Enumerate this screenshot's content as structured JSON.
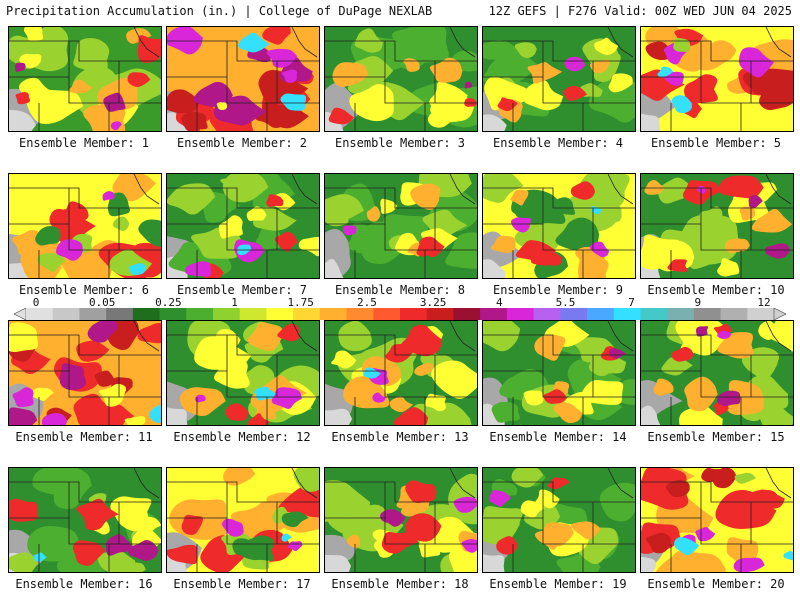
{
  "header": {
    "title_left": "Precipitation Accumulation (in.) | College of DuPage NEXLAB",
    "title_right": "12Z GEFS | F276 Valid: 00Z WED JUN 04 2025"
  },
  "colorbar": {
    "labels": [
      "0",
      "0.05",
      "0.25",
      "1",
      "1.75",
      "2.5",
      "3.25",
      "4",
      "5.5",
      "7",
      "9",
      "12"
    ],
    "colors": [
      "#e0e0e0",
      "#c8c8c8",
      "#a0a0a0",
      "#787878",
      "#1e6e1e",
      "#2f8f2f",
      "#4caf2f",
      "#8fd12f",
      "#cde82f",
      "#ffff33",
      "#ffd633",
      "#ffb02f",
      "#ff8a2f",
      "#ff5a2f",
      "#ee2a2a",
      "#c81e1e",
      "#9a1030",
      "#b0188a",
      "#d826d8",
      "#b860f0",
      "#7a7af0",
      "#4aa8ff",
      "#33e0ff",
      "#44c8c8",
      "#7ab0b0",
      "#909090",
      "#b0b0b0",
      "#d0d0d0"
    ]
  },
  "panels": [
    {
      "label": "Ensemble Member: 1",
      "palette": [
        "#3a9a2a",
        "#9ad22f",
        "#ffff33",
        "#ffb02f",
        "#ee2a2a",
        "#b0188a",
        "#d826d8"
      ]
    },
    {
      "label": "Ensemble Member: 2",
      "palette": [
        "#ffb02f",
        "#ee2a2a",
        "#c81e1e",
        "#b0188a",
        "#d826d8",
        "#33e0ff",
        "#ffff33"
      ]
    },
    {
      "label": "Ensemble Member: 3",
      "palette": [
        "#2f8f2f",
        "#4caf2f",
        "#9ad22f",
        "#ffff33",
        "#ffb02f",
        "#ee2a2a",
        "#b0188a"
      ]
    },
    {
      "label": "Ensemble Member: 4",
      "palette": [
        "#2f8f2f",
        "#4caf2f",
        "#9ad22f",
        "#ffff33",
        "#ffb02f",
        "#ee2a2a",
        "#d826d8"
      ]
    },
    {
      "label": "Ensemble Member: 5",
      "palette": [
        "#ffff33",
        "#ffb02f",
        "#ee2a2a",
        "#c81e1e",
        "#d826d8",
        "#33e0ff",
        "#9ad22f"
      ]
    },
    {
      "label": "Ensemble Member: 6",
      "palette": [
        "#ffff33",
        "#ffb02f",
        "#ee2a2a",
        "#9ad22f",
        "#2f8f2f",
        "#d826d8",
        "#33e0ff"
      ]
    },
    {
      "label": "Ensemble Member: 7",
      "palette": [
        "#2f8f2f",
        "#4caf2f",
        "#9ad22f",
        "#ffff33",
        "#ee2a2a",
        "#d826d8",
        "#33e0ff"
      ]
    },
    {
      "label": "Ensemble Member: 8",
      "palette": [
        "#2f8f2f",
        "#4caf2f",
        "#9ad22f",
        "#ffff33",
        "#ffb02f",
        "#ee2a2a",
        "#d826d8"
      ]
    },
    {
      "label": "Ensemble Member: 9",
      "palette": [
        "#ffff33",
        "#9ad22f",
        "#2f8f2f",
        "#ffb02f",
        "#ee2a2a",
        "#d826d8",
        "#33e0ff"
      ]
    },
    {
      "label": "Ensemble Member: 10",
      "palette": [
        "#2f8f2f",
        "#9ad22f",
        "#ffff33",
        "#ffb02f",
        "#ee2a2a",
        "#b0188a",
        "#d826d8"
      ]
    },
    {
      "label": "Ensemble Member: 11",
      "palette": [
        "#ffb02f",
        "#ee2a2a",
        "#c81e1e",
        "#ffff33",
        "#b0188a",
        "#d826d8",
        "#33e0ff"
      ]
    },
    {
      "label": "Ensemble Member: 12",
      "palette": [
        "#2f8f2f",
        "#9ad22f",
        "#ffff33",
        "#ffb02f",
        "#ee2a2a",
        "#d826d8",
        "#33e0ff"
      ]
    },
    {
      "label": "Ensemble Member: 13",
      "palette": [
        "#2f8f2f",
        "#9ad22f",
        "#ffff33",
        "#ffb02f",
        "#ee2a2a",
        "#d826d8",
        "#33e0ff"
      ]
    },
    {
      "label": "Ensemble Member: 14",
      "palette": [
        "#2f8f2f",
        "#4caf2f",
        "#9ad22f",
        "#ffff33",
        "#ffb02f",
        "#ee2a2a",
        "#b0188a"
      ]
    },
    {
      "label": "Ensemble Member: 15",
      "palette": [
        "#2f8f2f",
        "#9ad22f",
        "#ffff33",
        "#ffb02f",
        "#ee2a2a",
        "#b0188a",
        "#d826d8"
      ]
    },
    {
      "label": "Ensemble Member: 16",
      "palette": [
        "#2f8f2f",
        "#4caf2f",
        "#9ad22f",
        "#ffff33",
        "#ee2a2a",
        "#b0188a",
        "#33e0ff"
      ]
    },
    {
      "label": "Ensemble Member: 17",
      "palette": [
        "#ffff33",
        "#ffb02f",
        "#ee2a2a",
        "#9ad22f",
        "#2f8f2f",
        "#d826d8",
        "#33e0ff"
      ]
    },
    {
      "label": "Ensemble Member: 18",
      "palette": [
        "#2f8f2f",
        "#9ad22f",
        "#ffff33",
        "#ffb02f",
        "#ee2a2a",
        "#d826d8",
        "#b0188a"
      ]
    },
    {
      "label": "Ensemble Member: 19",
      "palette": [
        "#2f8f2f",
        "#4caf2f",
        "#9ad22f",
        "#ffff33",
        "#ffb02f",
        "#ee2a2a",
        "#d826d8"
      ]
    },
    {
      "label": "Ensemble Member: 20",
      "palette": [
        "#ffff33",
        "#ffb02f",
        "#ee2a2a",
        "#c81e1e",
        "#d826d8",
        "#33e0ff",
        "#9ad22f"
      ]
    }
  ]
}
